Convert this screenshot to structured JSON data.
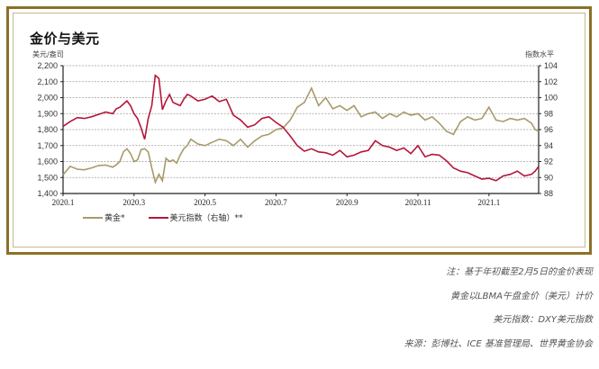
{
  "chart": {
    "title": "金价与美元",
    "left_unit": "美元/盎司",
    "right_unit": "指数水平",
    "legend": [
      {
        "label": "黄金*",
        "color": "#a89a6a"
      },
      {
        "label": "美元指数（右轴）**",
        "color": "#b5163a"
      }
    ]
  },
  "notes": [
    "注：基于年初截至2月5日的金价表现",
    "黄金以LBMA午盘金价（美元）计价",
    "美元指数：DXY美元指数",
    "来源：彭博社、ICE 基准管理局、世界黄金协会"
  ],
  "colors": {
    "frame_outer": "#8c7026",
    "frame_inner": "#c8b894",
    "gold_line": "#a89a6a",
    "dxy_line": "#b5163a",
    "grid": "#9a9a9a"
  },
  "chart_data": {
    "type": "line",
    "title": "金价与美元",
    "xlabel": "",
    "ylabel": "美元/盎司",
    "ylabel_right": "指数水平",
    "ylim": [
      1400,
      2200
    ],
    "ylim_right": [
      88,
      104
    ],
    "y_ticks": [
      "1,400",
      "1,500",
      "1,600",
      "1,700",
      "1,800",
      "1,900",
      "2,000",
      "2,100",
      "2,200"
    ],
    "y_ticks_right": [
      "88",
      "90",
      "92",
      "94",
      "96",
      "98",
      "100",
      "102",
      "104"
    ],
    "x_ticks": [
      "2020.1",
      "2020.3",
      "2020.5",
      "2020.7",
      "2020.9",
      "2020.11",
      "2021.1"
    ],
    "grid": true,
    "legend_position": "bottom",
    "x": [
      0,
      0.2,
      0.4,
      0.6,
      0.8,
      1.0,
      1.2,
      1.4,
      1.5,
      1.6,
      1.7,
      1.8,
      1.9,
      2.0,
      2.1,
      2.2,
      2.3,
      2.4,
      2.5,
      2.6,
      2.7,
      2.8,
      2.9,
      3.0,
      3.1,
      3.2,
      3.3,
      3.4,
      3.5,
      3.6,
      3.8,
      4.0,
      4.2,
      4.4,
      4.6,
      4.8,
      5.0,
      5.2,
      5.4,
      5.6,
      5.8,
      6.0,
      6.2,
      6.4,
      6.6,
      6.8,
      7.0,
      7.2,
      7.4,
      7.6,
      7.8,
      8.0,
      8.2,
      8.4,
      8.6,
      8.8,
      9.0,
      9.2,
      9.4,
      9.6,
      9.8,
      10.0,
      10.2,
      10.4,
      10.6,
      10.8,
      11.0,
      11.2,
      11.4,
      11.6,
      11.8,
      12.0,
      12.2,
      12.4,
      12.6,
      12.8,
      13.0,
      13.2,
      13.3,
      13.4
    ],
    "series": [
      {
        "name": "黄金*",
        "axis": "left",
        "values": [
          1517,
          1570,
          1552,
          1548,
          1560,
          1575,
          1578,
          1565,
          1580,
          1600,
          1660,
          1680,
          1650,
          1600,
          1610,
          1675,
          1680,
          1660,
          1560,
          1470,
          1520,
          1480,
          1620,
          1600,
          1610,
          1590,
          1640,
          1680,
          1700,
          1740,
          1710,
          1700,
          1720,
          1740,
          1730,
          1700,
          1740,
          1690,
          1730,
          1760,
          1770,
          1800,
          1810,
          1860,
          1940,
          1970,
          2060,
          1950,
          2000,
          1930,
          1950,
          1920,
          1950,
          1880,
          1900,
          1910,
          1870,
          1900,
          1880,
          1910,
          1890,
          1900,
          1860,
          1880,
          1840,
          1790,
          1770,
          1850,
          1880,
          1860,
          1870,
          1940,
          1860,
          1850,
          1870,
          1860,
          1870,
          1840,
          1800,
          1790
        ],
        "color": "#a89a6a"
      },
      {
        "name": "美元指数（右轴）**",
        "axis": "right",
        "values": [
          96.4,
          97.0,
          97.5,
          97.4,
          97.6,
          97.9,
          98.2,
          98.0,
          98.6,
          98.8,
          99.2,
          99.6,
          99.0,
          98.0,
          97.4,
          96.2,
          94.8,
          97.4,
          99.0,
          102.8,
          102.4,
          98.5,
          99.6,
          100.4,
          99.4,
          99.2,
          99.0,
          99.8,
          100.4,
          100.2,
          99.6,
          99.8,
          100.2,
          99.5,
          99.8,
          97.8,
          97.2,
          96.3,
          96.6,
          97.4,
          97.6,
          96.9,
          96.3,
          95.2,
          94.0,
          93.3,
          93.6,
          93.2,
          93.1,
          92.8,
          93.4,
          92.6,
          92.8,
          93.2,
          93.4,
          94.6,
          94.0,
          93.8,
          93.4,
          93.7,
          93.0,
          94.0,
          92.6,
          92.9,
          92.8,
          92.1,
          91.2,
          90.8,
          90.6,
          90.2,
          89.8,
          89.9,
          89.6,
          90.2,
          90.4,
          90.8,
          90.2,
          90.4,
          90.8,
          91.4
        ],
        "color": "#b5163a"
      }
    ]
  }
}
